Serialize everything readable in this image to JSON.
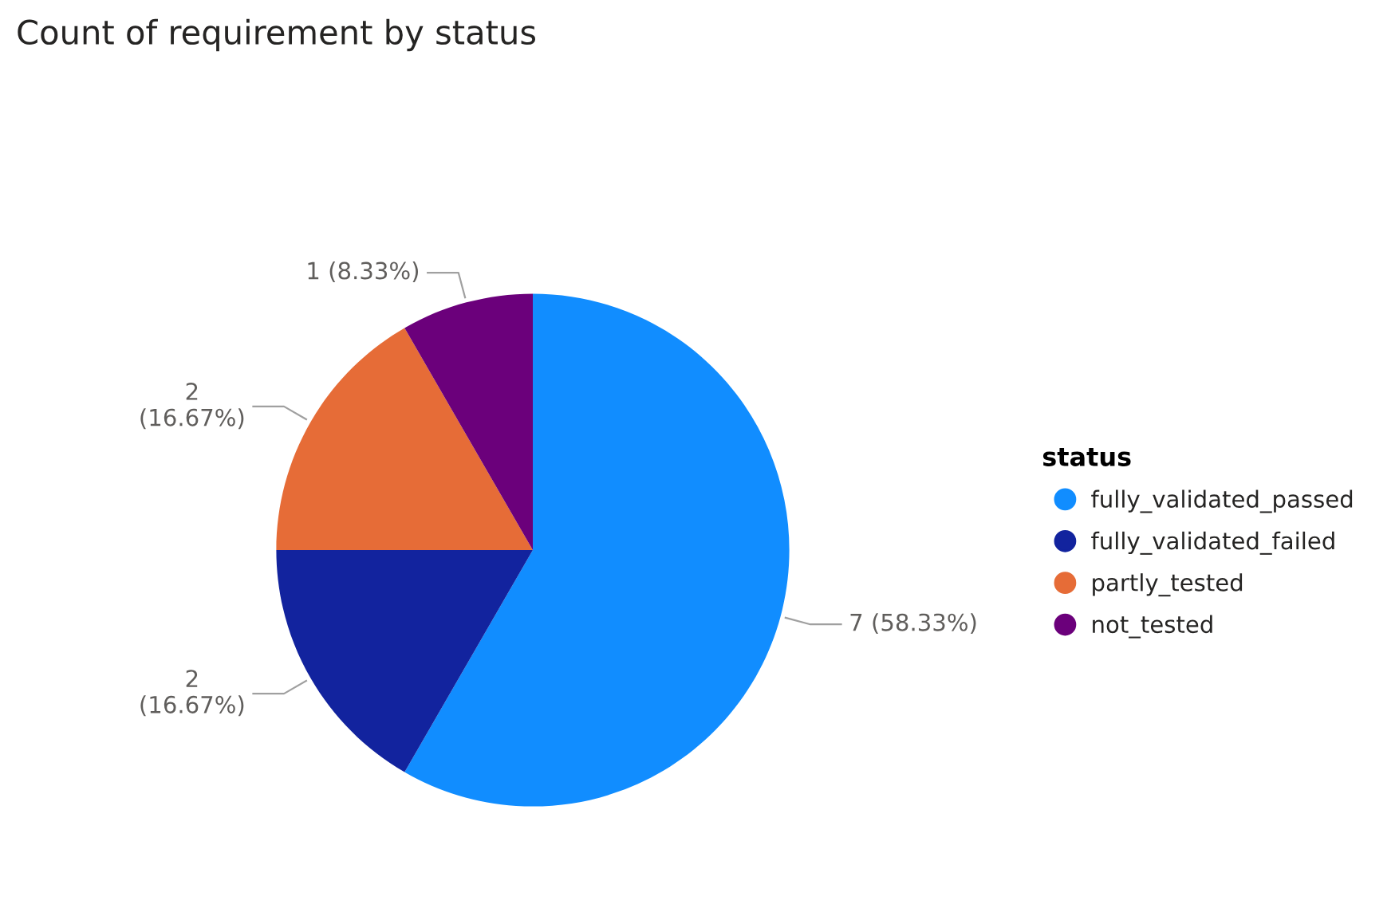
{
  "chart_data": {
    "type": "pie",
    "title": "Count of requirement by status",
    "legend_title": "status",
    "categories": [
      "fully_validated_passed",
      "fully_validated_failed",
      "partly_tested",
      "not_tested"
    ],
    "values": [
      7,
      2,
      2,
      1
    ],
    "colors": [
      "#118dff",
      "#12239e",
      "#e66c37",
      "#6b007b"
    ],
    "value_labels": [
      "7 (58.33%)",
      "2 (16.67%)",
      "2 (16.67%)",
      "1 (8.33%)"
    ],
    "legend": "right"
  }
}
